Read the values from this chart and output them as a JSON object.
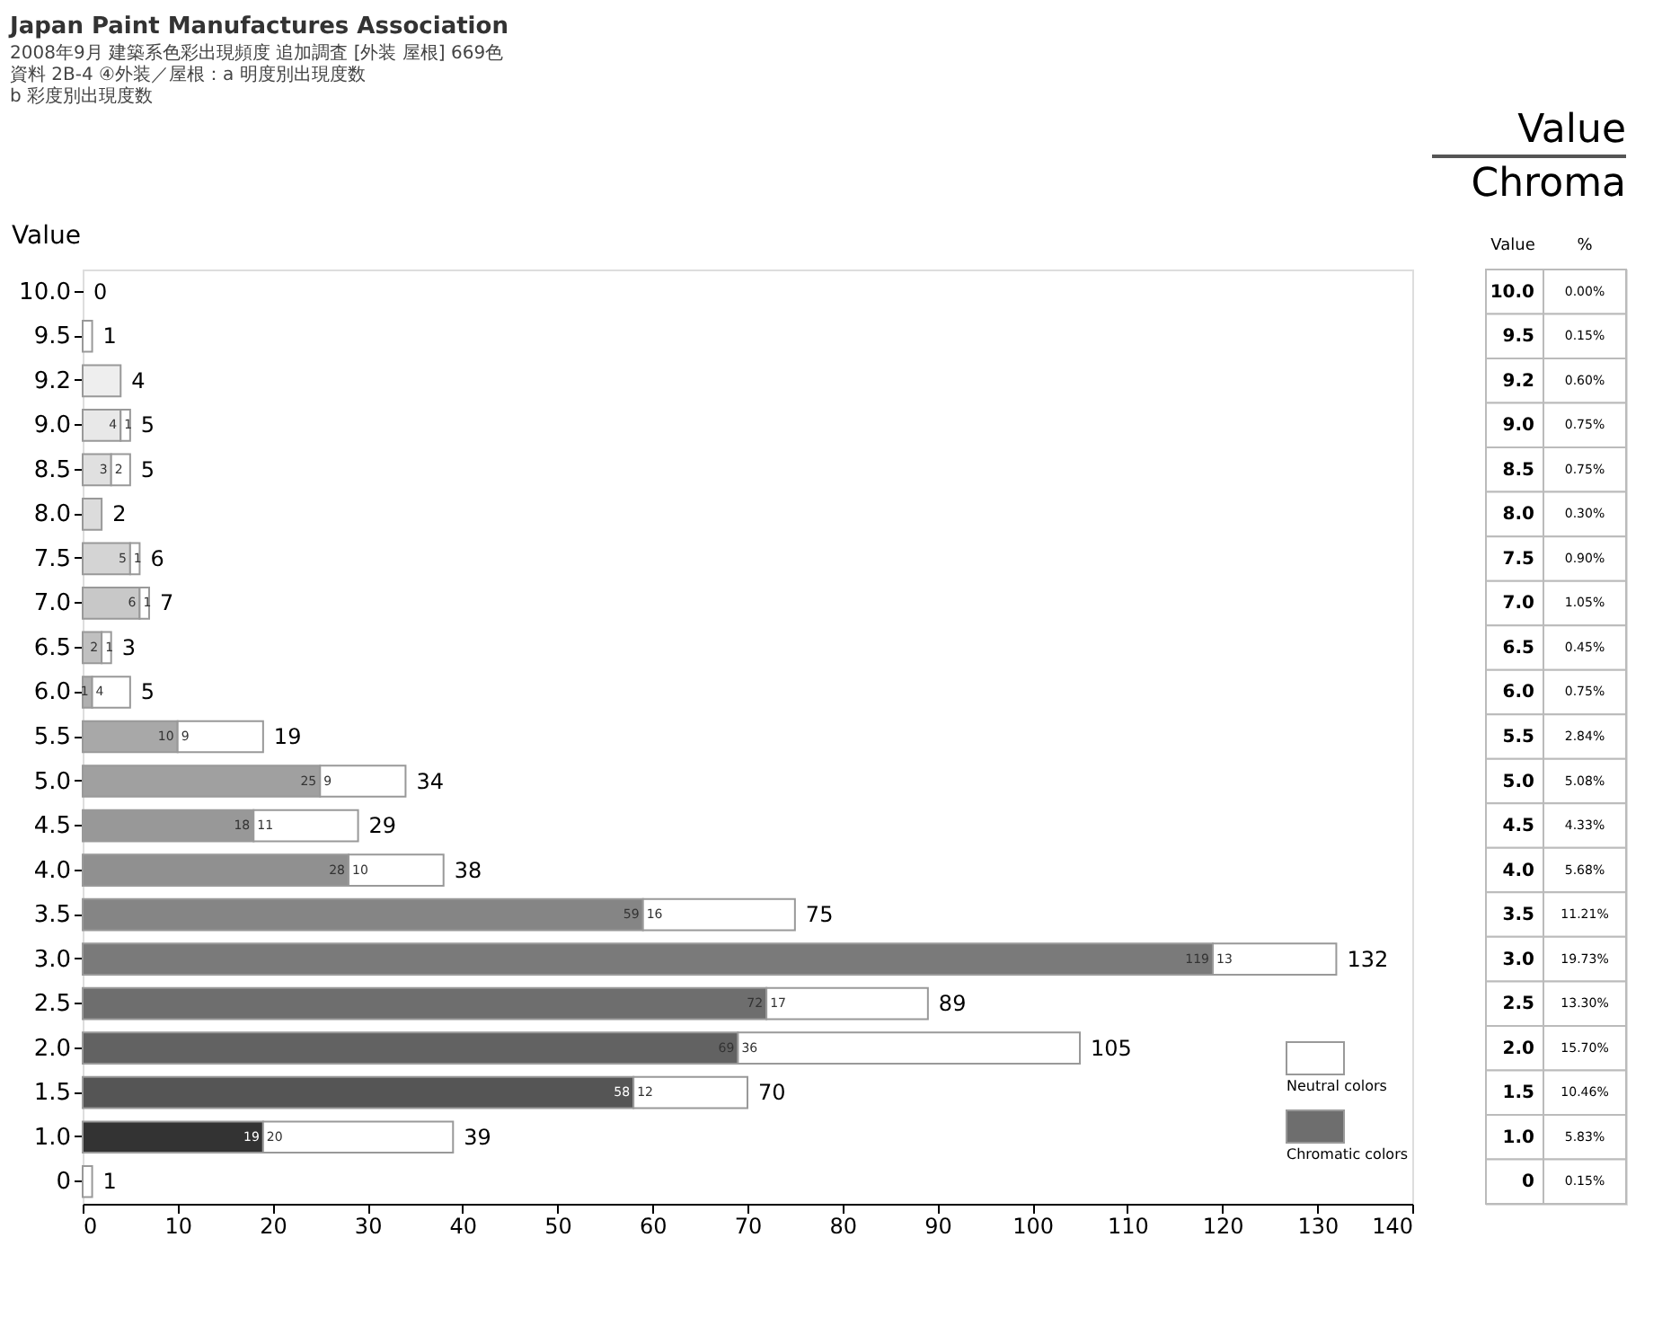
{
  "chart_data": {
    "type": "bar",
    "orientation": "horizontal",
    "stacked": true,
    "title": "Japan Paint Manufactures Association",
    "subtitle": "2008年9月 建築系色彩出現頻度 追加調査 [外装 屋根] 669色",
    "ylabel": "Value",
    "categories": [
      "10.0",
      "9.5",
      "9.2",
      "9.0",
      "8.5",
      "8.0",
      "7.5",
      "7.0",
      "6.5",
      "6.0",
      "5.5",
      "5.0",
      "4.5",
      "4.0",
      "3.5",
      "3.0",
      "2.5",
      "2.0",
      "1.5",
      "1.0",
      "0"
    ],
    "series": [
      {
        "name": "Chromatic colors",
        "color": "#6e6e6e",
        "values": [
          0,
          0,
          4,
          4,
          3,
          2,
          5,
          6,
          2,
          1,
          10,
          25,
          18,
          28,
          59,
          119,
          72,
          69,
          58,
          19,
          0
        ],
        "colors": [
          "#eeeeee",
          "#eeeeee",
          "#eeeeee",
          "#e8e8e8",
          "#e0e0e0",
          "#dcdcdc",
          "#d4d4d4",
          "#c8c8c8",
          "#c0c0c0",
          "#b0b0b0",
          "#a8a8a8",
          "#a0a0a0",
          "#989898",
          "#909090",
          "#858585",
          "#7a7a7a",
          "#6e6e6e",
          "#626262",
          "#555555",
          "#333333",
          "#333333"
        ],
        "value_labels": [
          null,
          null,
          null,
          "4",
          "3",
          null,
          "5",
          "6",
          "2",
          "1",
          "10",
          "25",
          "18",
          "28",
          "59",
          "119",
          "72",
          "69",
          "58",
          "19",
          null
        ]
      },
      {
        "name": "Neutral colors",
        "color": "#ffffff",
        "values": [
          0,
          1,
          0,
          1,
          2,
          0,
          1,
          1,
          1,
          4,
          9,
          9,
          11,
          10,
          16,
          13,
          17,
          36,
          12,
          20,
          1
        ],
        "value_labels": [
          null,
          null,
          null,
          "1",
          "2",
          null,
          "1",
          "1",
          "1",
          "4",
          "9",
          "9",
          "11",
          "10",
          "16",
          "13",
          "17",
          "36",
          "12",
          "20",
          null
        ]
      }
    ],
    "totals": [
      "0",
      "1",
      "4",
      "5",
      "5",
      "2",
      "6",
      "7",
      "3",
      "5",
      "19",
      "34",
      "29",
      "38",
      "75",
      "132",
      "89",
      "105",
      "70",
      "39",
      "1"
    ],
    "xlim": [
      0,
      140
    ],
    "xticks": [
      0,
      10,
      20,
      30,
      40,
      50,
      60,
      70,
      80,
      90,
      100,
      110,
      120,
      130,
      140
    ],
    "grid": false,
    "legend": "bottom right",
    "annotations": [
      "資料 2B-4 ④外装／屋根：a 明度別出現度数",
      "b 彩度別出現度数",
      "Value",
      "Chroma",
      "Value",
      "%",
      "0.00%",
      "0.15%",
      "0.60%",
      "0.75%",
      "0.75%",
      "0.30%",
      "0.90%",
      "1.05%",
      "0.45%",
      "0.75%",
      "2.84%",
      "5.08%",
      "4.33%",
      "5.68%",
      "11.21%",
      "19.73%",
      "13.30%",
      "15.70%",
      "10.46%",
      "5.83%",
      "0.15%"
    ]
  }
}
